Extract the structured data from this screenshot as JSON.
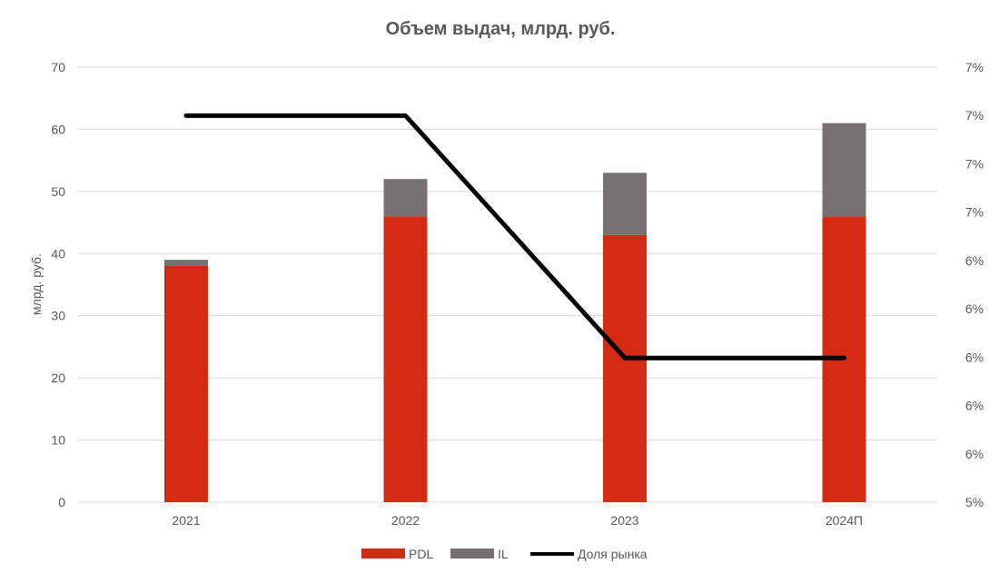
{
  "chart_data": {
    "type": "bar",
    "stacked": true,
    "title": "Объем выдач, млрд. руб.",
    "xlabel": "",
    "ylabel": "млрд. руб.",
    "ylim": [
      0,
      70
    ],
    "y_ticks": [
      "0",
      "10",
      "20",
      "30",
      "40",
      "50",
      "60",
      "70"
    ],
    "y2_ticks": [
      "5%",
      "6%",
      "6%",
      "6%",
      "6%",
      "6%",
      "7%",
      "7%",
      "7%",
      "7%"
    ],
    "grid": true,
    "legend_position": "bottom",
    "categories": [
      "2021",
      "2022",
      "2023",
      "2024П"
    ],
    "series": [
      {
        "name": "PDL",
        "kind": "bar",
        "color": "#d42a11",
        "values": [
          38,
          46,
          43,
          46
        ]
      },
      {
        "name": "IL",
        "kind": "bar",
        "color": "#767171",
        "values": [
          1,
          6,
          10,
          15
        ]
      },
      {
        "name": "Доля рынка",
        "kind": "line",
        "axis": "right",
        "color": "#000000",
        "values": [
          0.07,
          0.07,
          0.06,
          0.06
        ],
        "y2lim": [
          0.05,
          0.07
        ]
      }
    ]
  }
}
